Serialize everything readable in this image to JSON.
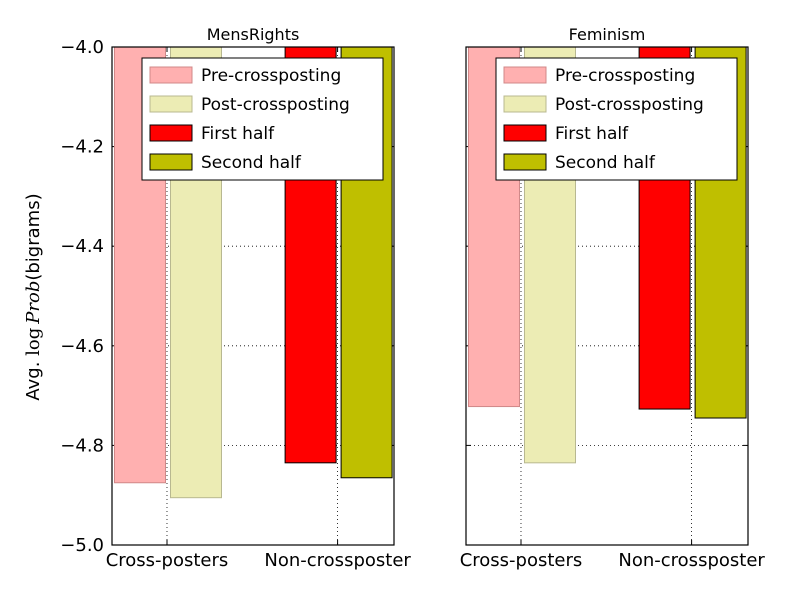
{
  "chart_data": [
    {
      "type": "bar",
      "title": "MensRights",
      "categories": [
        "Cross-posters",
        "Non-crossposter"
      ],
      "series": [
        {
          "name": "Pre-crossposting",
          "color": "#ffb0b0",
          "edge": "#d08888",
          "values": [
            -4.875,
            null
          ]
        },
        {
          "name": "Post-crossposting",
          "color": "#ececb4",
          "edge": "#b8b890",
          "values": [
            -4.905,
            null
          ]
        },
        {
          "name": "First half",
          "color": "#ff0000",
          "edge": "#000000",
          "values": [
            null,
            -4.835
          ]
        },
        {
          "name": "Second half",
          "color": "#bfbf00",
          "edge": "#000000",
          "values": [
            null,
            -4.865
          ]
        }
      ],
      "ylabel": "Avg. log Prob(bigrams)",
      "ylim": [
        -5.0,
        -4.0
      ],
      "yticks": [
        "−4.0",
        "−4.2",
        "−4.4",
        "−4.6",
        "−4.8",
        "−5.0"
      ],
      "legend_position": "top-right",
      "grid": true
    },
    {
      "type": "bar",
      "title": "Feminism",
      "categories": [
        "Cross-posters",
        "Non-crossposter"
      ],
      "series": [
        {
          "name": "Pre-crossposting",
          "color": "#ffb0b0",
          "edge": "#d08888",
          "values": [
            -4.722,
            null
          ]
        },
        {
          "name": "Post-crossposting",
          "color": "#ececb4",
          "edge": "#b8b890",
          "values": [
            -4.835,
            null
          ]
        },
        {
          "name": "First half",
          "color": "#ff0000",
          "edge": "#000000",
          "values": [
            null,
            -4.727
          ]
        },
        {
          "name": "Second half",
          "color": "#bfbf00",
          "edge": "#000000",
          "values": [
            null,
            -4.745
          ]
        }
      ],
      "ylim": [
        -5.0,
        -4.0
      ],
      "legend_position": "top-right",
      "grid": true
    }
  ],
  "ylabel_parts": {
    "prefix": "Avg. ",
    "log": "log",
    "prob": "Prob",
    "suffix": "(bigrams)"
  }
}
